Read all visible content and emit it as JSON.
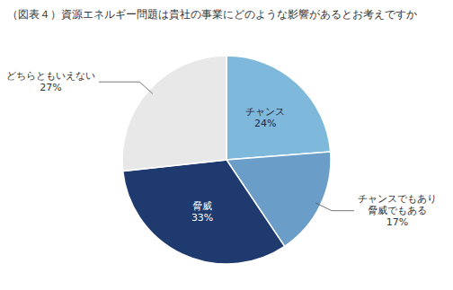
{
  "chart_data": {
    "type": "pie",
    "title": "（図表４）資源エネルギー問題は貴社の事業にどのような影響があるとお考えですか",
    "categories": [
      "チャンス",
      "チャンスでもあり\n脅威でもある",
      "脅威",
      "どちらともいえない"
    ],
    "values": [
      24,
      17,
      33,
      27
    ],
    "value_labels": [
      "24%",
      "17%",
      "33%",
      "27%"
    ],
    "colors": [
      "#7eb8db",
      "#6a9ec8",
      "#1e3a6e",
      "#e8e8e8"
    ],
    "data_labels": true
  }
}
